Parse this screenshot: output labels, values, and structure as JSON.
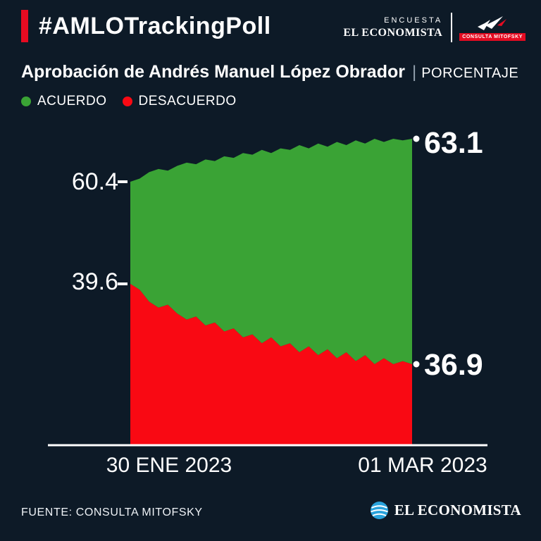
{
  "header": {
    "hashtag": "#AMLOTrackingPoll",
    "brand": {
      "encuesta": "ENCUESTA",
      "el_economista": "EL ECONOMISTA",
      "mitofsky": "CONSULTA MITOFSKY"
    }
  },
  "title": {
    "main": "Aprobación de Andrés Manuel López Obrador",
    "separator": "|",
    "unit": "PORCENTAJE"
  },
  "legend": [
    {
      "label": "ACUERDO",
      "color_key": "green"
    },
    {
      "label": "DESACUERDO",
      "color_key": "red"
    }
  ],
  "chart_data": {
    "type": "area",
    "title": "Aprobación de Andrés Manuel López Obrador",
    "ylabel": "PORCENTAJE",
    "x_start_label": "30 ENE 2023",
    "x_end_label": "01 MAR 2023",
    "series": [
      {
        "name": "ACUERDO",
        "start_label": "60.4",
        "end_label": "63.1",
        "values": [
          60.4,
          60.6,
          61.0,
          61.2,
          61.1,
          61.4,
          61.6,
          61.5,
          61.8,
          61.7,
          62.0,
          61.9,
          62.2,
          62.1,
          62.4,
          62.2,
          62.5,
          62.4,
          62.7,
          62.5,
          62.8,
          62.6,
          62.9,
          62.7,
          63.0,
          62.8,
          63.1,
          62.9,
          63.1,
          63.0,
          63.1
        ]
      },
      {
        "name": "DESACUERDO",
        "start_label": "39.6",
        "end_label": "36.9",
        "values": [
          39.6,
          39.4,
          39.0,
          38.8,
          38.9,
          38.6,
          38.4,
          38.5,
          38.2,
          38.3,
          38.0,
          38.1,
          37.8,
          37.9,
          37.6,
          37.8,
          37.5,
          37.6,
          37.3,
          37.5,
          37.2,
          37.4,
          37.1,
          37.3,
          37.0,
          37.2,
          36.9,
          37.1,
          36.9,
          37.0,
          36.9
        ]
      }
    ]
  },
  "footer": {
    "source": "FUENTE: CONSULTA MITOFSKY",
    "logo": "EL ECONOMISTA"
  },
  "colors": {
    "background": "#0d1a27",
    "accent_red": "#e50b21",
    "green": "#3aa335",
    "red": "#f90913",
    "logo_blue": "#29a3dc",
    "white": "#ffffff"
  }
}
